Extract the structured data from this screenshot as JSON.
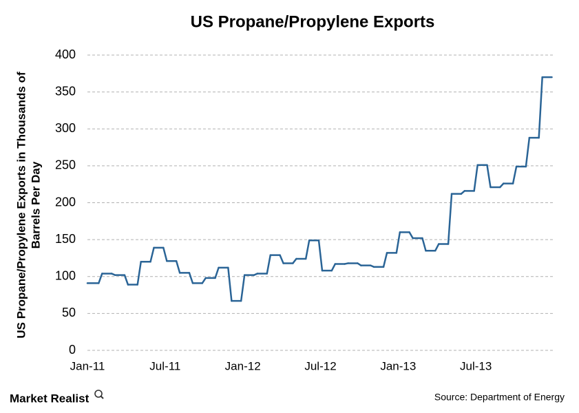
{
  "chart_data": {
    "type": "line",
    "title": "US Propane/Propylene Exports",
    "y_label": [
      "US Propane/Propylene Exports in Thousands of",
      "Barrels Per Day"
    ],
    "categories": [
      "Jan-11",
      null,
      null,
      null,
      null,
      null,
      "Jul-11",
      null,
      null,
      null,
      null,
      null,
      "Jan-12",
      null,
      null,
      null,
      null,
      null,
      "Jul-12",
      null,
      null,
      null,
      null,
      null,
      "Jan-13",
      null,
      null,
      null,
      null,
      null,
      "Jul-13",
      null,
      null,
      null,
      null,
      null
    ],
    "series": [
      {
        "name": "US Propane/Propylene Exports",
        "color": "#2a6496",
        "values": [
          91,
          104,
          102,
          89,
          120,
          139,
          121,
          105,
          91,
          98,
          112,
          67,
          102,
          104,
          129,
          118,
          124,
          149,
          108,
          117,
          118,
          115,
          113,
          132,
          160,
          152,
          135,
          144,
          212,
          216,
          251,
          221,
          226,
          249,
          288,
          370
        ]
      }
    ],
    "ylim": [
      0,
      400
    ],
    "yticks": [
      0,
      50,
      100,
      150,
      200,
      250,
      300,
      350,
      400
    ],
    "grid": true,
    "brand": "Market Realist",
    "source": "Source: Department of Energy"
  }
}
